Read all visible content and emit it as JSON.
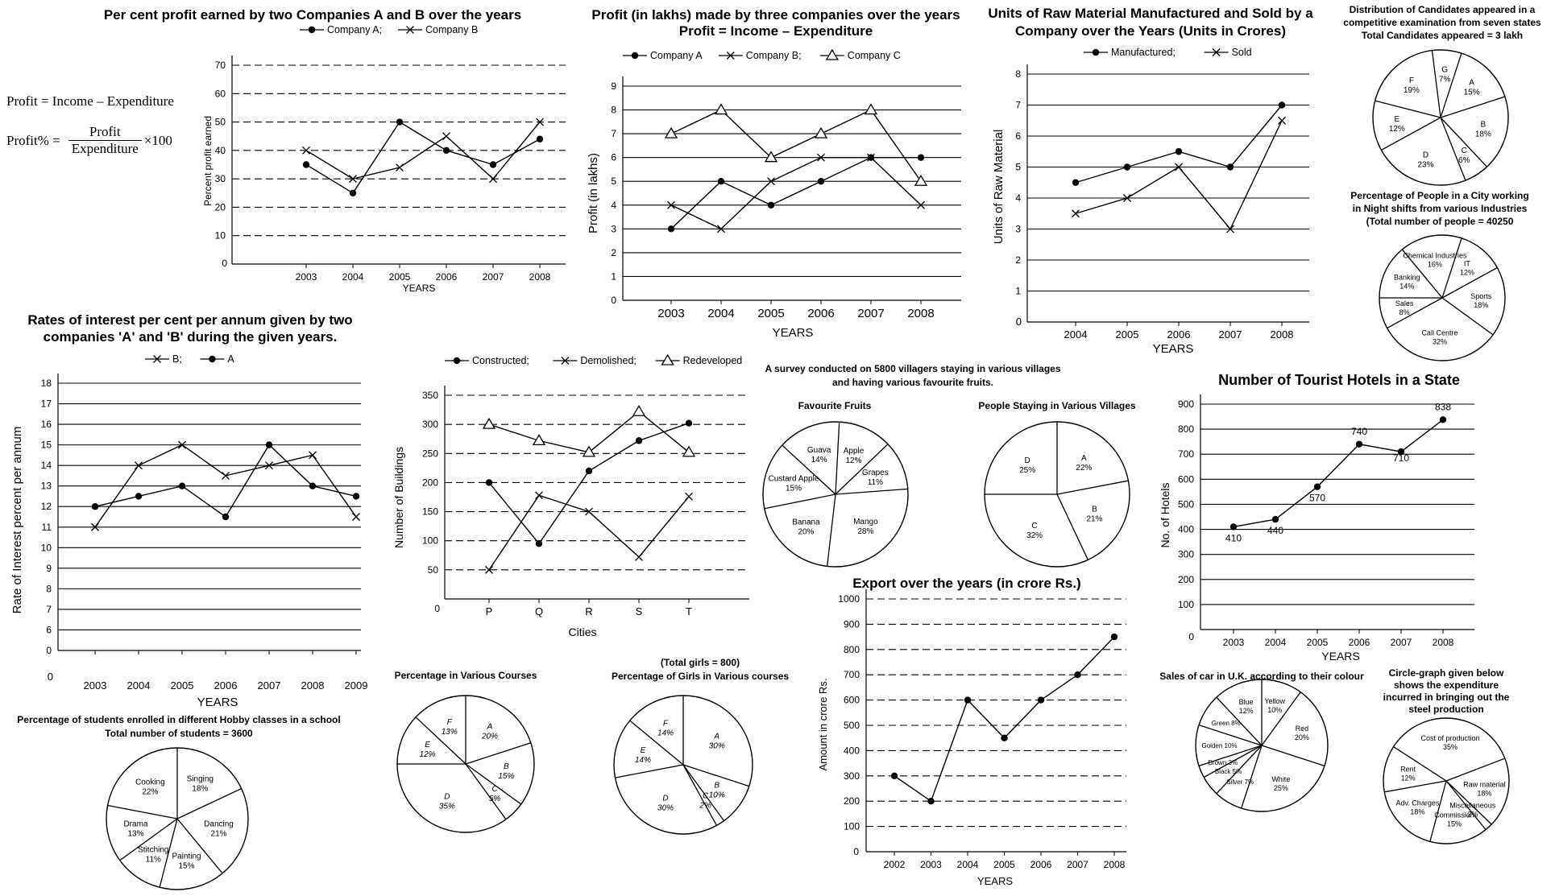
{
  "formula": {
    "line1": "Profit = Income – Expenditure",
    "lhs": "Profit% =",
    "numerator": "Profit",
    "denominator": "Expenditure",
    "factor": "×100"
  },
  "chart_data": [
    {
      "id": "profit_pct",
      "type": "line",
      "title": "Per cent profit earned by two Companies A and B over the years",
      "xlabel": "YEARS",
      "ylabel": "Percent profit earned",
      "categories": [
        "2003",
        "2004",
        "2005",
        "2006",
        "2007",
        "2008"
      ],
      "ylim": [
        0,
        70
      ],
      "yticks": [
        0,
        10,
        20,
        30,
        40,
        50,
        60,
        70
      ],
      "grid": "dashed",
      "legend": "top",
      "series": [
        {
          "name": "Company A;",
          "marker": "dot",
          "values": [
            35,
            25,
            50,
            40,
            35,
            44
          ]
        },
        {
          "name": "Company B",
          "marker": "x",
          "values": [
            40,
            30,
            34,
            45,
            30,
            50
          ]
        }
      ]
    },
    {
      "id": "profit_lakhs",
      "type": "line",
      "title": "Profit (in lakhs) made by three companies over the years",
      "subtitle": "Profit = Income – Expenditure",
      "xlabel": "YEARS",
      "ylabel": "Profit (in lakhs)",
      "categories": [
        "2003",
        "2004",
        "2005",
        "2006",
        "2007",
        "2008"
      ],
      "ylim": [
        0,
        9
      ],
      "yticks": [
        0,
        1,
        2,
        3,
        4,
        5,
        6,
        7,
        8,
        9
      ],
      "grid": "solid",
      "legend": "top",
      "series": [
        {
          "name": "Company A",
          "marker": "dot",
          "values": [
            3,
            5,
            4,
            5,
            6,
            6
          ]
        },
        {
          "name": "Company B;",
          "marker": "x",
          "values": [
            4,
            3,
            5,
            6,
            6,
            4
          ]
        },
        {
          "name": "Company C",
          "marker": "triangle",
          "values": [
            7,
            8,
            6,
            7,
            8,
            5
          ]
        }
      ]
    },
    {
      "id": "raw_material",
      "type": "line",
      "title": "Units of Raw Material Manufactured and Sold by a Company over the Years (Units in Crores)",
      "xlabel": "YEARS",
      "ylabel": "Units of Raw Material",
      "categories": [
        "2004",
        "2005",
        "2006",
        "2007",
        "2008"
      ],
      "ylim": [
        0,
        8
      ],
      "yticks": [
        0,
        1,
        2,
        3,
        4,
        5,
        6,
        7,
        8
      ],
      "grid": "solid",
      "legend": "top",
      "series": [
        {
          "name": "Manufactured;",
          "marker": "dot",
          "values": [
            4.5,
            5,
            5.5,
            5,
            7
          ]
        },
        {
          "name": "Sold",
          "marker": "x",
          "values": [
            3.5,
            4,
            5,
            3,
            6.5
          ]
        }
      ]
    },
    {
      "id": "candidates_pie",
      "type": "pie",
      "title": "Distribution of Candidates appeared in a competitive examination from seven states",
      "subtitle": "Total Candidates appeared = 3 lakh",
      "slices": [
        {
          "label": "A",
          "value": 15,
          "text": "15%"
        },
        {
          "label": "B",
          "value": 18,
          "text": "18%"
        },
        {
          "label": "C",
          "value": 6,
          "text": "6%"
        },
        {
          "label": "D",
          "value": 23,
          "text": "23%"
        },
        {
          "label": "E",
          "value": 12,
          "text": "12%"
        },
        {
          "label": "F",
          "value": 19,
          "text": "19%"
        },
        {
          "label": "G",
          "value": 7,
          "text": "7%"
        }
      ]
    },
    {
      "id": "night_shift_pie",
      "type": "pie",
      "title": "Percentage of People in a City working in Night shifts from various Industries",
      "subtitle": "(Total number of people = 40250",
      "slices": [
        {
          "label": "IT",
          "value": 12,
          "text": "12%"
        },
        {
          "label": "Sports",
          "value": 18,
          "text": "18%"
        },
        {
          "label": "Call Centre",
          "value": 32,
          "text": "32%"
        },
        {
          "label": "Sales",
          "value": 8,
          "text": "8%"
        },
        {
          "label": "Banking",
          "value": 14,
          "text": "14%"
        },
        {
          "label": "Chemical Industries",
          "value": 16,
          "text": "16%"
        }
      ]
    },
    {
      "id": "interest_rates",
      "type": "line",
      "title": "Rates of interest per cent per annum given by two companies 'A' and 'B' during the given years.",
      "xlabel": "YEARS",
      "ylabel": "Rate of Interest percent per annum",
      "categories": [
        "2003",
        "2004",
        "2005",
        "2006",
        "2007",
        "2008",
        "2009"
      ],
      "ylim": [
        5,
        18
      ],
      "yticks": [
        6,
        7,
        8,
        9,
        10,
        11,
        12,
        13,
        14,
        15,
        16,
        17,
        18
      ],
      "origin_label": "0",
      "grid": "solid",
      "legend": "top",
      "series": [
        {
          "name": "B;",
          "marker": "x",
          "values": [
            11,
            14,
            15,
            13.5,
            14,
            14.5,
            11.5
          ]
        },
        {
          "name": "A",
          "marker": "dot",
          "values": [
            12,
            12.5,
            13,
            11.5,
            15,
            13,
            12.5
          ]
        }
      ]
    },
    {
      "id": "buildings",
      "type": "line",
      "title": "",
      "xlabel": "Cities",
      "ylabel": "Number of Buildings",
      "categories": [
        "P",
        "Q",
        "R",
        "S",
        "T"
      ],
      "ylim": [
        0,
        350
      ],
      "yticks": [
        0,
        50,
        100,
        150,
        200,
        250,
        300,
        350
      ],
      "grid": "dashed",
      "legend": "top",
      "series": [
        {
          "name": "Constructed;",
          "marker": "dot",
          "values": [
            200,
            95,
            220,
            272,
            302
          ]
        },
        {
          "name": "Demolished;",
          "marker": "x",
          "values": [
            50,
            178,
            150,
            72,
            176
          ]
        },
        {
          "name": "Redeveloped",
          "marker": "triangle",
          "values": [
            300,
            272,
            252,
            322,
            252
          ]
        }
      ]
    },
    {
      "id": "fruits_pie",
      "type": "pie",
      "title": "A survey conducted on 5800 villagers staying in various villages and having various favourite fruits.",
      "subtitle": "Favourite Fruits",
      "slices": [
        {
          "label": "Apple",
          "value": 12,
          "text": "12%"
        },
        {
          "label": "Grapes",
          "value": 11,
          "text": "11%"
        },
        {
          "label": "Mango",
          "value": 28,
          "text": "28%"
        },
        {
          "label": "Banana",
          "value": 20,
          "text": "20%"
        },
        {
          "label": "Custard Apple",
          "value": 15,
          "text": "15%"
        },
        {
          "label": "Guava",
          "value": 14,
          "text": "14%"
        }
      ]
    },
    {
      "id": "villages_pie",
      "type": "pie",
      "title": "People Staying in Various Villages",
      "slices": [
        {
          "label": "A",
          "value": 22,
          "text": "22%"
        },
        {
          "label": "B",
          "value": 21,
          "text": "21%"
        },
        {
          "label": "C",
          "value": 32,
          "text": "32%"
        },
        {
          "label": "D",
          "value": 25,
          "text": "25%"
        }
      ]
    },
    {
      "id": "hotels",
      "type": "line",
      "title": "Number of Tourist Hotels in a State",
      "xlabel": "YEARS",
      "ylabel": "No. of Hotels",
      "categories": [
        "2003",
        "2004",
        "2005",
        "2006",
        "2007",
        "2008"
      ],
      "ylim": [
        0,
        900
      ],
      "yticks": [
        0,
        100,
        200,
        300,
        400,
        500,
        600,
        700,
        800,
        900
      ],
      "grid": "solid",
      "series": [
        {
          "name": "",
          "marker": "dot",
          "values": [
            410,
            440,
            570,
            740,
            710,
            838
          ],
          "labels": [
            "410",
            "440",
            "570",
            "740",
            "710",
            "838"
          ]
        }
      ]
    },
    {
      "id": "exports",
      "type": "line",
      "title": "Export over the years (in crore Rs.)",
      "xlabel": "YEARS",
      "ylabel": "Amount in crore Rs.",
      "categories": [
        "2002",
        "2003",
        "2004",
        "2005",
        "2006",
        "2007",
        "2008"
      ],
      "ylim": [
        0,
        1000
      ],
      "yticks": [
        0,
        100,
        200,
        300,
        400,
        500,
        600,
        700,
        800,
        900,
        1000
      ],
      "grid": "dashed",
      "series": [
        {
          "name": "",
          "marker": "dot",
          "values": [
            300,
            200,
            600,
            450,
            600,
            700,
            850
          ]
        }
      ]
    },
    {
      "id": "hobby_pie",
      "type": "pie",
      "title": "Percentage of students enrolled in different Hobby classes in a school",
      "subtitle": "Total number of students = 3600",
      "slices": [
        {
          "label": "Singing",
          "value": 18,
          "text": "18%"
        },
        {
          "label": "Dancing",
          "value": 21,
          "text": "21%"
        },
        {
          "label": "Painting",
          "value": 15,
          "text": "15%"
        },
        {
          "label": "Stitching",
          "value": 11,
          "text": "11%"
        },
        {
          "label": "Drama",
          "value": 13,
          "text": "13%"
        },
        {
          "label": "Cooking",
          "value": 22,
          "text": "22%"
        }
      ]
    },
    {
      "id": "courses_pie",
      "type": "pie",
      "title": "Percentage in Various Courses",
      "slices": [
        {
          "label": "A",
          "value": 20,
          "text": "20%"
        },
        {
          "label": "B",
          "value": 15,
          "text": "15%"
        },
        {
          "label": "C",
          "value": 5,
          "text": "5%"
        },
        {
          "label": "D",
          "value": 35,
          "text": "35%"
        },
        {
          "label": "E",
          "value": 12,
          "text": "12%"
        },
        {
          "label": "F",
          "value": 13,
          "text": "13%"
        }
      ]
    },
    {
      "id": "girls_pie",
      "type": "pie",
      "title": "Percentage of Girls in Various courses",
      "subtitle": "(Total girls = 800)",
      "slices": [
        {
          "label": "A",
          "value": 30,
          "text": "30%"
        },
        {
          "label": "B",
          "value": 10,
          "text": "10%"
        },
        {
          "label": "C",
          "value": 2,
          "text": "2%"
        },
        {
          "label": "D",
          "value": 30,
          "text": "30%"
        },
        {
          "label": "E",
          "value": 14,
          "text": "14%"
        },
        {
          "label": "F",
          "value": 14,
          "text": "14%"
        }
      ]
    },
    {
      "id": "car_colour_pie",
      "type": "pie",
      "title": "Sales of car in U.K. according to their colour",
      "slices": [
        {
          "label": "Yellow",
          "value": 10,
          "text": "10%"
        },
        {
          "label": "Red",
          "value": 20,
          "text": "20%"
        },
        {
          "label": "White",
          "value": 25,
          "text": "25%"
        },
        {
          "label": "Silver",
          "value": 7,
          "text": "7%"
        },
        {
          "label": "Black",
          "value": 5,
          "text": "5%"
        },
        {
          "label": "Brown",
          "value": 3,
          "text": "3%"
        },
        {
          "label": "Golden",
          "value": 10,
          "text": "10%"
        },
        {
          "label": "Green",
          "value": 8,
          "text": "8%"
        },
        {
          "label": "Blue",
          "value": 12,
          "text": "12%"
        }
      ]
    },
    {
      "id": "steel_pie",
      "type": "pie",
      "title": "Circle-graph given below shows the expenditure incurred in bringing out the steel production",
      "slices": [
        {
          "label": "Cost of production",
          "value": 35,
          "text": "35%"
        },
        {
          "label": "Raw material",
          "value": 18,
          "text": "18%"
        },
        {
          "label": "Miscellaneous",
          "value": 2,
          "text": "2%"
        },
        {
          "label": "Commission",
          "value": 15,
          "text": "15%"
        },
        {
          "label": "Adv. Charges",
          "value": 18,
          "text": "18%"
        },
        {
          "label": "Rent",
          "value": 12,
          "text": "12%"
        }
      ]
    }
  ]
}
